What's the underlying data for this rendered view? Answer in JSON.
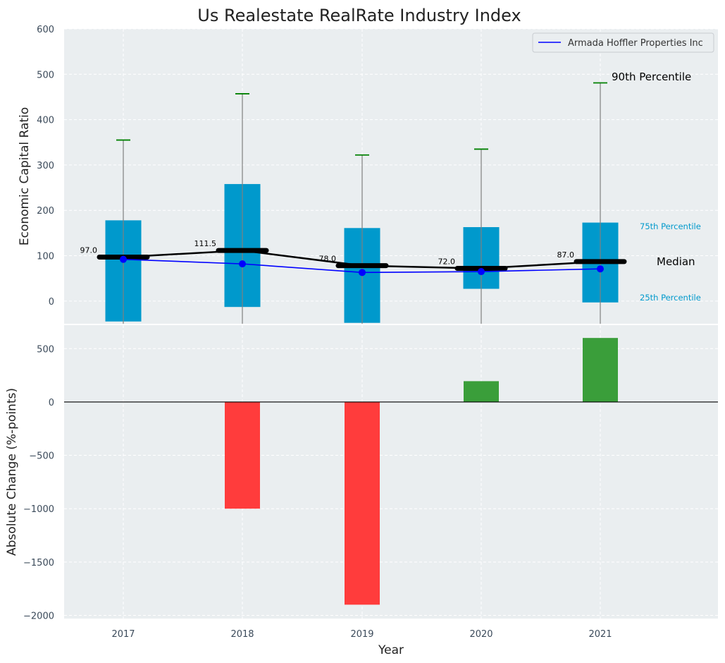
{
  "chart_data": [
    {
      "type": "box",
      "title": "Us Realestate RealRate Industry Index",
      "ylabel": "Economic Capital Ratio",
      "ylim": [
        -50,
        600
      ],
      "yticks": [
        0,
        100,
        200,
        300,
        400,
        500,
        600
      ],
      "categories": [
        "2017",
        "2018",
        "2019",
        "2020",
        "2021"
      ],
      "boxes": [
        {
          "year": "2017",
          "q1": -45,
          "q3": 178,
          "median": 97,
          "p90": 355,
          "median_label": "97.0"
        },
        {
          "year": "2018",
          "q1": -13,
          "q3": 258,
          "median": 111.5,
          "p90": 457,
          "median_label": "111.5"
        },
        {
          "year": "2019",
          "q1": -48,
          "q3": 161,
          "median": 78,
          "p90": 322,
          "median_label": "78.0"
        },
        {
          "year": "2020",
          "q1": 27,
          "q3": 163,
          "median": 72,
          "p90": 335,
          "median_label": "72.0"
        },
        {
          "year": "2021",
          "q1": -3,
          "q3": 173,
          "median": 87,
          "p90": 481,
          "median_label": "87.0"
        }
      ],
      "series": [
        {
          "name": "Armada Hoffler Properties Inc",
          "color": "#0000ff",
          "values": [
            92,
            82,
            63,
            65,
            71
          ]
        }
      ],
      "median_line_values": [
        97,
        111.5,
        78,
        72,
        87
      ],
      "annotations": {
        "p90": "90th Percentile",
        "p75": "75th Percentile",
        "median": "Median",
        "p25": "25th Percentile"
      },
      "legend_placement": "top-right",
      "grid": true,
      "colors": {
        "box": "#0099cc",
        "whisker_cap": "#008000",
        "median": "#000000",
        "whisker": "#808080"
      }
    },
    {
      "type": "bar",
      "xlabel": "Year",
      "ylabel": "Absolute Change (%-points)",
      "ylim": [
        -2030,
        720
      ],
      "yticks": [
        -2000,
        -1500,
        -1000,
        -500,
        0,
        500
      ],
      "categories": [
        "2017",
        "2018",
        "2019",
        "2020",
        "2021"
      ],
      "values": [
        0,
        -1000,
        -1900,
        195,
        600
      ],
      "colors": {
        "positive": "#3a9e3a",
        "negative": "#ff3c3c"
      },
      "grid": true
    }
  ]
}
